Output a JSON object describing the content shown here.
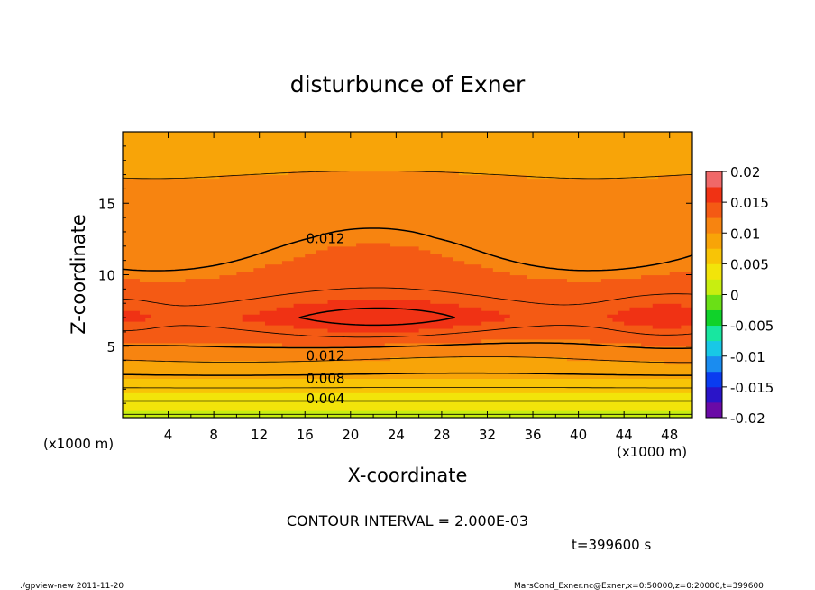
{
  "chart_data": {
    "type": "heatmap",
    "title": "disturbunce of Exner",
    "xlabel": "X-coordinate",
    "ylabel": "Z-coordinate",
    "x_unit_label": "(x1000 m)",
    "y_unit_label": "(x1000 m)",
    "xlim": [
      0,
      50
    ],
    "ylim": [
      0,
      20
    ],
    "xticks": [
      4,
      8,
      12,
      16,
      20,
      24,
      28,
      32,
      36,
      40,
      44,
      48
    ],
    "yticks": [
      5,
      10,
      15
    ],
    "contour_interval_text": "CONTOUR INTERVAL = 2.000E-03",
    "time_text": "t=399600 s",
    "colorbar": {
      "min": -0.02,
      "max": 0.02,
      "levels": [
        -0.02,
        -0.015,
        -0.01,
        -0.005,
        0,
        0.005,
        0.01,
        0.015,
        0.02
      ],
      "labels": [
        "0.02",
        "0.015",
        "0.01",
        "0.005",
        "0",
        "-0.005",
        "-0.01",
        "-0.015",
        "-0.02"
      ],
      "colors": [
        "#6a0aa6",
        "#2a14c8",
        "#0a3cf0",
        "#1a8cf0",
        "#18c8e6",
        "#18e6a0",
        "#10d22a",
        "#6ae016",
        "#c8ee10",
        "#f2e40a",
        "#f8c406",
        "#f8a408",
        "#f78410",
        "#f45a14",
        "#f03214",
        "#f06868"
      ]
    },
    "contour_labels": [
      {
        "text": "0.012",
        "x": 17.8,
        "z": 12.6
      },
      {
        "text": "0.012",
        "x": 17.8,
        "z": 4.4
      },
      {
        "text": "0.008",
        "x": 17.8,
        "z": 2.8
      },
      {
        "text": "0.004",
        "x": 17.8,
        "z": 1.4
      }
    ],
    "field_profile": {
      "z_levels": [
        0,
        0.7,
        1.4,
        2.1,
        2.8,
        3.5,
        4.4,
        5.5,
        7.0,
        9.5,
        12.6,
        15.8,
        18.3,
        20
      ],
      "field_values": [
        0.0015,
        0.003,
        0.0045,
        0.006,
        0.0075,
        0.009,
        0.0105,
        0.0125,
        0.0145,
        0.013,
        0.0115,
        0.0105,
        0.0095,
        0.0088
      ]
    },
    "features": [
      {
        "label": "max-cell",
        "x": 22.5,
        "z": 6.8,
        "half_width_x": 8.8,
        "half_height_z": 1.4,
        "value": 0.0165
      },
      {
        "label": "max-cell",
        "x": 47.5,
        "z": 7.0,
        "half_width_x": 4.5,
        "half_height_z": 1.5,
        "value": 0.016
      },
      {
        "label": "max-cell",
        "x": 0.0,
        "z": 7.0,
        "half_width_x": 2.8,
        "half_height_z": 1.3,
        "value": 0.0155
      }
    ]
  },
  "footer": {
    "left": "./gpview-new   2011-11-20",
    "right": "MarsCond_Exner.nc@Exner,x=0:50000,z=0:20000,t=399600"
  }
}
